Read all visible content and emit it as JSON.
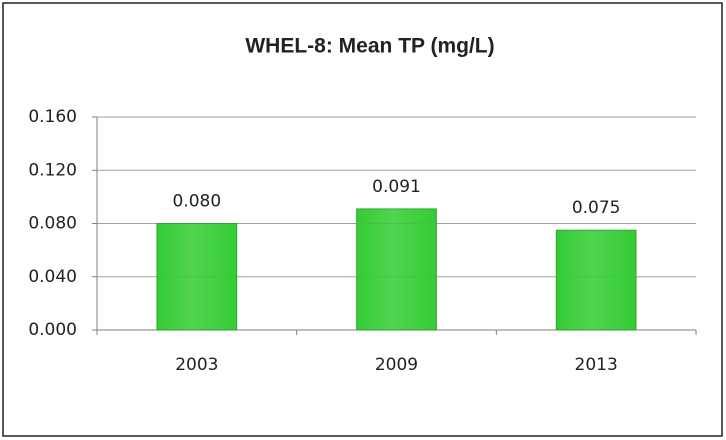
{
  "chart_data": {
    "type": "bar",
    "title": "WHEL-8: Mean TP (mg/L)",
    "categories": [
      "2003",
      "2009",
      "2013"
    ],
    "values": [
      0.08,
      0.091,
      0.075
    ],
    "value_labels": [
      "0.080",
      "0.091",
      "0.075"
    ],
    "color": "#33cc33",
    "ylim": [
      0,
      0.16
    ],
    "yticks": [
      {
        "value": 0,
        "label": "0.000"
      },
      {
        "value": 0.04,
        "label": "0.040"
      },
      {
        "value": 0.08,
        "label": "0.080"
      },
      {
        "value": 0.12,
        "label": "0.120"
      },
      {
        "value": 0.16,
        "label": "0.160"
      }
    ],
    "grid": true
  }
}
